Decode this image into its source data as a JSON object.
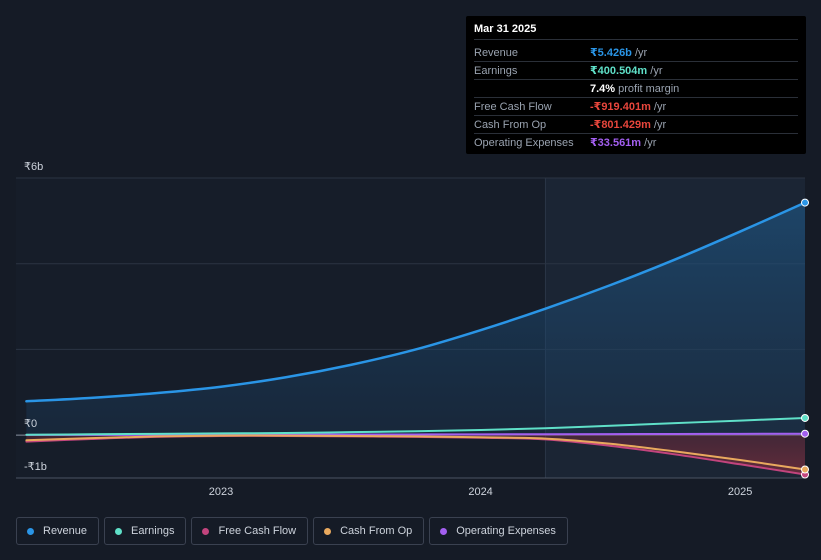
{
  "tooltip": {
    "date": "Mar 31 2025",
    "rows": [
      {
        "label": "Revenue",
        "value": "₹5.426b",
        "unit": " /yr",
        "color": "#2a95e6"
      },
      {
        "label": "Earnings",
        "value": "₹400.504m",
        "unit": " /yr",
        "color": "#5fe0c8"
      },
      {
        "label": "",
        "value": "7.4%",
        "unit": " profit margin",
        "color": "#ffffff"
      },
      {
        "label": "Free Cash Flow",
        "value": "-₹919.401m",
        "unit": " /yr",
        "color": "#e8463c"
      },
      {
        "label": "Cash From Op",
        "value": "-₹801.429m",
        "unit": " /yr",
        "color": "#e8463c"
      },
      {
        "label": "Operating Expenses",
        "value": "₹33.561m",
        "unit": " /yr",
        "color": "#a35ff0"
      }
    ]
  },
  "chart_data": {
    "type": "area",
    "y_unit": "₹b",
    "ylim": [
      -1,
      6
    ],
    "y_ticks": [
      {
        "value": 6,
        "label": "₹6b"
      },
      {
        "value": 0,
        "label": "₹0"
      },
      {
        "value": -1,
        "label": "-₹1b"
      }
    ],
    "xlim": [
      2022.21,
      2025.25
    ],
    "x_ticks": [
      {
        "value": 2023,
        "label": "2023"
      },
      {
        "value": 2024,
        "label": "2024"
      },
      {
        "value": 2025,
        "label": "2025"
      }
    ],
    "forecast_start": 2024.25,
    "x": [
      2022.25,
      2022.5,
      2022.75,
      2023.0,
      2023.25,
      2023.5,
      2023.75,
      2024.0,
      2024.25,
      2024.5,
      2024.75,
      2025.0,
      2025.25
    ],
    "series": [
      {
        "name": "Revenue",
        "color": "#2a95e6",
        "values": [
          0.79,
          0.87,
          0.98,
          1.13,
          1.35,
          1.64,
          2.0,
          2.45,
          2.95,
          3.5,
          4.1,
          4.75,
          5.426
        ]
      },
      {
        "name": "Earnings",
        "color": "#5fe0c8",
        "values": [
          0.01,
          0.02,
          0.03,
          0.04,
          0.05,
          0.07,
          0.09,
          0.12,
          0.16,
          0.22,
          0.28,
          0.34,
          0.4005
        ]
      },
      {
        "name": "Free Cash Flow",
        "color": "#c2447d",
        "values": [
          -0.15,
          -0.09,
          -0.04,
          -0.02,
          -0.02,
          -0.03,
          -0.04,
          -0.06,
          -0.1,
          -0.25,
          -0.45,
          -0.68,
          -0.9194
        ]
      },
      {
        "name": "Cash From Op",
        "color": "#e9a95e",
        "values": [
          -0.12,
          -0.07,
          -0.03,
          -0.01,
          -0.01,
          -0.02,
          -0.03,
          -0.05,
          -0.08,
          -0.2,
          -0.38,
          -0.58,
          -0.8014
        ]
      },
      {
        "name": "Operating Expenses",
        "color": "#a35ff0",
        "values": [
          0.005,
          0.006,
          0.008,
          0.01,
          0.012,
          0.014,
          0.016,
          0.019,
          0.022,
          0.025,
          0.028,
          0.031,
          0.0336
        ]
      }
    ]
  },
  "legend": [
    {
      "label": "Revenue",
      "color": "#2a95e6"
    },
    {
      "label": "Earnings",
      "color": "#5fe0c8"
    },
    {
      "label": "Free Cash Flow",
      "color": "#c2447d"
    },
    {
      "label": "Cash From Op",
      "color": "#e9a95e"
    },
    {
      "label": "Operating Expenses",
      "color": "#a35ff0"
    }
  ]
}
